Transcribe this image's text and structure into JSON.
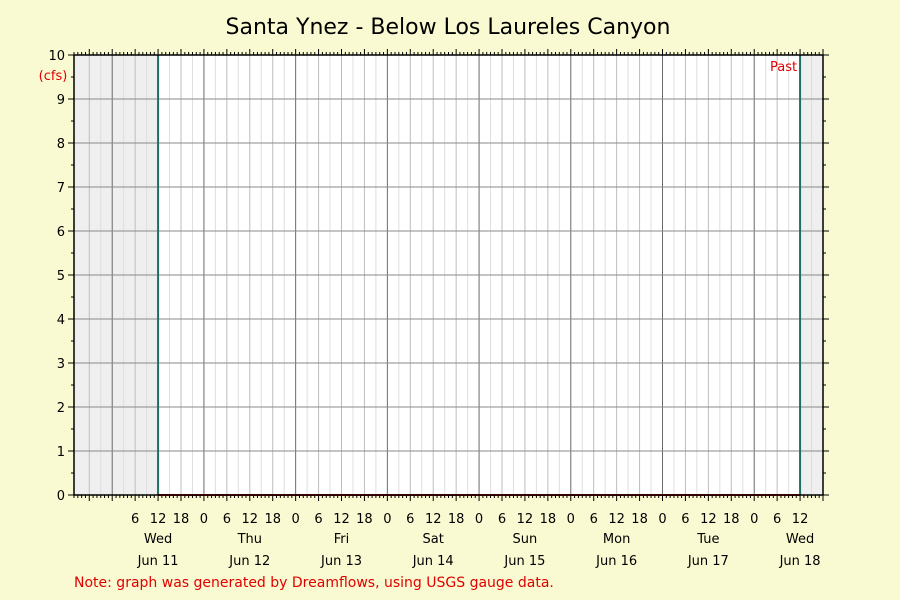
{
  "chart_data": {
    "type": "line",
    "title": "Santa Ynez - Below Los Laureles Canyon",
    "y_unit": "(cfs)",
    "ylim": [
      0,
      10
    ],
    "y_ticks": [
      0,
      1,
      2,
      3,
      4,
      5,
      6,
      7,
      8,
      9,
      10
    ],
    "x_range_hours": [
      -10,
      186
    ],
    "hour_tick_labels": [
      "6",
      "12",
      "18",
      "0"
    ],
    "days": [
      {
        "weekday": "Wed",
        "date": "Jun 11"
      },
      {
        "weekday": "Thu",
        "date": "Jun 12"
      },
      {
        "weekday": "Fri",
        "date": "Jun 13"
      },
      {
        "weekday": "Sat",
        "date": "Jun 14"
      },
      {
        "weekday": "Sun",
        "date": "Jun 15"
      },
      {
        "weekday": "Mon",
        "date": "Jun 16"
      },
      {
        "weekday": "Tue",
        "date": "Jun 17"
      },
      {
        "weekday": "Wed",
        "date": "Jun 18"
      }
    ],
    "past_marker_label": "Past",
    "series": [
      {
        "x": [
          "Jun 11 12:00",
          "Jun 18 12:00"
        ],
        "values": [
          0,
          0
        ],
        "color": "#e00000"
      }
    ],
    "grid": true,
    "colors": {
      "background": "#fafad2",
      "plot": "#ffffff",
      "shaded": "#efefef",
      "series": "#e00000",
      "marker": "#1f6f5f"
    }
  },
  "note": "Note: graph was generated by Dreamflows, using USGS gauge data."
}
